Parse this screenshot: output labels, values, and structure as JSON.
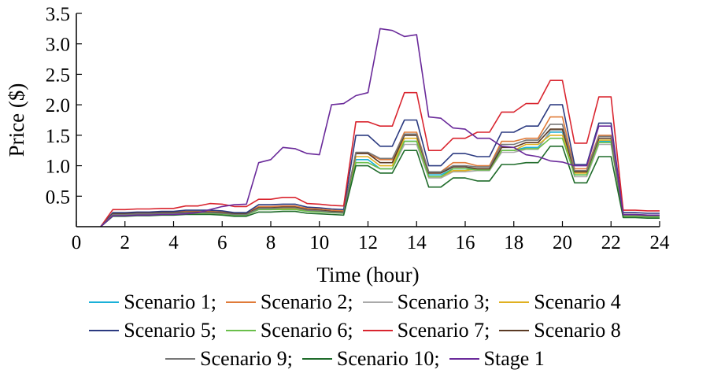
{
  "chart_data": {
    "type": "line",
    "xlabel": "Time (hour)",
    "ylabel": "Price ($)",
    "xlim": [
      0,
      24
    ],
    "ylim": [
      0,
      3.5
    ],
    "x_ticks": [
      "0",
      "2",
      "4",
      "6",
      "8",
      "10",
      "12",
      "14",
      "16",
      "18",
      "20",
      "22",
      "24"
    ],
    "y_ticks": [
      "0.5",
      "1.0",
      "1.5",
      "2.0",
      "2.5",
      "3.0",
      "3.5"
    ],
    "x": [
      1,
      1.5,
      2,
      2.5,
      3,
      3.5,
      4,
      4.5,
      5,
      5.5,
      6,
      6.5,
      7,
      7.5,
      8,
      8.5,
      9,
      9.5,
      10,
      10.5,
      11,
      11.5,
      12,
      12.5,
      13,
      13.5,
      14,
      14.5,
      15,
      15.5,
      16,
      16.5,
      17,
      17.5,
      18,
      18.5,
      19,
      19.5,
      20,
      20.5,
      21,
      21.5,
      22,
      22.5,
      23,
      23.5,
      24
    ],
    "series": [
      {
        "name": "Scenario 1",
        "color": "#1ab0d8",
        "values": [
          0,
          0.2,
          0.2,
          0.21,
          0.21,
          0.22,
          0.22,
          0.23,
          0.23,
          0.23,
          0.22,
          0.2,
          0.2,
          0.29,
          0.29,
          0.3,
          0.3,
          0.27,
          0.26,
          0.24,
          0.23,
          1.1,
          1.1,
          0.95,
          0.95,
          1.4,
          1.4,
          0.85,
          0.85,
          0.95,
          0.95,
          0.95,
          0.95,
          1.25,
          1.25,
          1.3,
          1.3,
          1.55,
          1.55,
          0.85,
          0.85,
          1.4,
          1.4,
          0.18,
          0.18,
          0.17,
          0.17
        ]
      },
      {
        "name": "Scenario 2",
        "color": "#e07b39",
        "values": [
          0,
          0.22,
          0.22,
          0.23,
          0.23,
          0.24,
          0.24,
          0.25,
          0.25,
          0.25,
          0.24,
          0.22,
          0.22,
          0.33,
          0.33,
          0.34,
          0.34,
          0.3,
          0.29,
          0.27,
          0.26,
          1.2,
          1.2,
          1.1,
          1.1,
          1.55,
          1.55,
          0.9,
          0.9,
          1.05,
          1.05,
          1.0,
          1.0,
          1.4,
          1.4,
          1.45,
          1.45,
          1.8,
          1.8,
          0.95,
          0.95,
          1.5,
          1.5,
          0.2,
          0.2,
          0.19,
          0.19
        ]
      },
      {
        "name": "Scenario 3",
        "color": "#aaaaaa",
        "values": [
          0,
          0.19,
          0.19,
          0.2,
          0.2,
          0.21,
          0.21,
          0.22,
          0.22,
          0.22,
          0.21,
          0.19,
          0.19,
          0.28,
          0.28,
          0.29,
          0.29,
          0.26,
          0.25,
          0.23,
          0.22,
          1.05,
          1.05,
          0.95,
          0.95,
          1.35,
          1.35,
          0.8,
          0.8,
          0.9,
          0.9,
          0.92,
          0.92,
          1.22,
          1.22,
          1.27,
          1.27,
          1.58,
          1.58,
          0.82,
          0.82,
          1.35,
          1.35,
          0.18,
          0.18,
          0.17,
          0.17
        ]
      },
      {
        "name": "Scenario 4",
        "color": "#e0b020",
        "values": [
          0,
          0.2,
          0.2,
          0.2,
          0.2,
          0.21,
          0.21,
          0.22,
          0.22,
          0.22,
          0.21,
          0.2,
          0.2,
          0.29,
          0.29,
          0.3,
          0.3,
          0.27,
          0.26,
          0.24,
          0.23,
          1.15,
          1.15,
          1.0,
          1.0,
          1.45,
          1.45,
          0.82,
          0.82,
          0.92,
          0.92,
          0.95,
          0.95,
          1.25,
          1.25,
          1.35,
          1.35,
          1.5,
          1.5,
          0.88,
          0.88,
          1.42,
          1.42,
          0.18,
          0.18,
          0.17,
          0.17
        ]
      },
      {
        "name": "Scenario 5",
        "color": "#2b3a80",
        "values": [
          0,
          0.23,
          0.23,
          0.24,
          0.24,
          0.25,
          0.25,
          0.27,
          0.27,
          0.27,
          0.26,
          0.23,
          0.23,
          0.36,
          0.36,
          0.37,
          0.37,
          0.32,
          0.31,
          0.29,
          0.28,
          1.5,
          1.5,
          1.32,
          1.32,
          1.75,
          1.75,
          1.0,
          1.0,
          1.2,
          1.2,
          1.15,
          1.15,
          1.55,
          1.55,
          1.65,
          1.65,
          2.0,
          2.0,
          1.02,
          1.02,
          1.7,
          1.7,
          0.23,
          0.23,
          0.22,
          0.22
        ]
      },
      {
        "name": "Scenario 6",
        "color": "#6abf4b",
        "values": [
          0,
          0.19,
          0.19,
          0.2,
          0.2,
          0.21,
          0.21,
          0.22,
          0.22,
          0.22,
          0.21,
          0.19,
          0.19,
          0.28,
          0.28,
          0.28,
          0.28,
          0.25,
          0.24,
          0.23,
          0.22,
          1.05,
          1.05,
          0.95,
          0.95,
          1.4,
          1.4,
          0.82,
          0.82,
          0.95,
          0.95,
          0.93,
          0.93,
          1.25,
          1.25,
          1.28,
          1.28,
          1.45,
          1.45,
          0.85,
          0.85,
          1.38,
          1.38,
          0.17,
          0.17,
          0.16,
          0.16
        ]
      },
      {
        "name": "Scenario 7",
        "color": "#d9252f",
        "values": [
          0,
          0.28,
          0.28,
          0.29,
          0.29,
          0.3,
          0.3,
          0.34,
          0.34,
          0.38,
          0.37,
          0.33,
          0.33,
          0.45,
          0.45,
          0.48,
          0.48,
          0.38,
          0.37,
          0.35,
          0.34,
          1.72,
          1.72,
          1.65,
          1.65,
          2.2,
          2.2,
          1.25,
          1.25,
          1.45,
          1.45,
          1.55,
          1.55,
          1.88,
          1.88,
          2.02,
          2.02,
          2.4,
          2.4,
          1.37,
          1.37,
          2.13,
          2.13,
          0.27,
          0.27,
          0.26,
          0.26
        ]
      },
      {
        "name": "Scenario 8",
        "color": "#5a3a24",
        "values": [
          0,
          0.21,
          0.21,
          0.22,
          0.22,
          0.23,
          0.23,
          0.24,
          0.24,
          0.24,
          0.23,
          0.21,
          0.21,
          0.31,
          0.31,
          0.32,
          0.32,
          0.28,
          0.27,
          0.25,
          0.24,
          1.2,
          1.2,
          1.05,
          1.05,
          1.5,
          1.5,
          0.88,
          0.88,
          0.98,
          0.98,
          0.95,
          0.95,
          1.3,
          1.3,
          1.38,
          1.38,
          1.6,
          1.6,
          0.9,
          0.9,
          1.45,
          1.45,
          0.19,
          0.19,
          0.18,
          0.18
        ]
      },
      {
        "name": "Scenario 9",
        "color": "#777777",
        "values": [
          0,
          0.2,
          0.2,
          0.21,
          0.21,
          0.22,
          0.22,
          0.23,
          0.23,
          0.23,
          0.22,
          0.2,
          0.2,
          0.3,
          0.3,
          0.31,
          0.31,
          0.27,
          0.26,
          0.24,
          0.23,
          1.22,
          1.22,
          1.12,
          1.12,
          1.52,
          1.52,
          0.9,
          0.9,
          1.0,
          1.0,
          0.98,
          0.98,
          1.35,
          1.35,
          1.42,
          1.42,
          1.68,
          1.68,
          0.92,
          0.92,
          1.48,
          1.48,
          0.19,
          0.19,
          0.18,
          0.18
        ]
      },
      {
        "name": "Scenario 10",
        "color": "#1f6b2a",
        "values": [
          0,
          0.17,
          0.17,
          0.18,
          0.18,
          0.19,
          0.19,
          0.2,
          0.2,
          0.2,
          0.19,
          0.17,
          0.17,
          0.24,
          0.24,
          0.25,
          0.25,
          0.22,
          0.21,
          0.2,
          0.19,
          1.0,
          1.0,
          0.88,
          0.88,
          1.25,
          1.25,
          0.65,
          0.65,
          0.8,
          0.8,
          0.75,
          0.75,
          1.02,
          1.02,
          1.05,
          1.05,
          1.32,
          1.32,
          0.72,
          0.72,
          1.15,
          1.15,
          0.15,
          0.15,
          0.14,
          0.14
        ]
      },
      {
        "name": "Stage 1",
        "color": "#6a2a9a",
        "values": [
          0,
          0.18,
          0.18,
          0.19,
          0.19,
          0.2,
          0.2,
          0.21,
          0.23,
          0.28,
          0.33,
          0.36,
          0.37,
          1.05,
          1.1,
          1.3,
          1.28,
          1.2,
          1.18,
          2.0,
          2.02,
          2.15,
          2.2,
          3.25,
          3.22,
          3.12,
          3.15,
          1.8,
          1.78,
          1.62,
          1.6,
          1.45,
          1.45,
          1.32,
          1.3,
          1.18,
          1.15,
          1.08,
          1.06,
          1.0,
          1.0,
          1.65,
          1.65,
          0.2,
          0.2,
          0.19,
          0.19
        ]
      }
    ],
    "legend": [
      [
        "Scenario 1;",
        "Scenario 2;",
        "Scenario 3;",
        "Scenario 4"
      ],
      [
        "Scenario 5;",
        "Scenario 6;",
        "Scenario 7;",
        "Scenario 8"
      ],
      [
        "Scenario 9;",
        "Scenario 10;",
        "Stage 1"
      ]
    ],
    "grid": false,
    "legend_position": "bottom"
  }
}
